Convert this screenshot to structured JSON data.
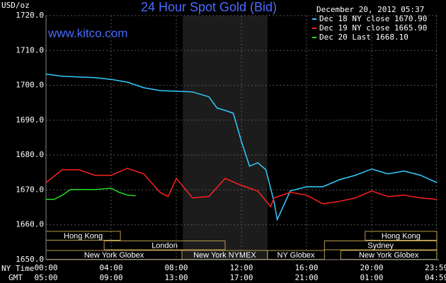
{
  "chart_data": {
    "type": "line",
    "title": "24 Hour Spot Gold (Bid)",
    "subtitle": "December 20, 2012 05:37",
    "site": "www.kitco.com",
    "y_label": "USD/oz",
    "x_row_labels": [
      "NY Time",
      "GMT"
    ],
    "xlim": [
      0,
      24
    ],
    "xticks": [
      {
        "value": 0,
        "label": "00:00"
      },
      {
        "value": 4,
        "label": "04:00"
      },
      {
        "value": 8,
        "label": "08:00"
      },
      {
        "value": 12,
        "label": "12:00"
      },
      {
        "value": 16,
        "label": "16:00"
      },
      {
        "value": 20,
        "label": "20:00"
      },
      {
        "value": 23.983,
        "label": "23:59"
      }
    ],
    "x2_labels": [
      "05:00",
      "09:00",
      "13:00",
      "17:00",
      "21:00",
      "01:00",
      "04:59"
    ],
    "ylim": [
      1650,
      1720
    ],
    "yticks": [
      {
        "value": 1650,
        "label": "1650.0"
      },
      {
        "value": 1660,
        "label": "1660.0"
      },
      {
        "value": 1670,
        "label": "1670.0"
      },
      {
        "value": 1680,
        "label": "1680.0"
      },
      {
        "value": 1690,
        "label": "1690.0"
      },
      {
        "value": 1700,
        "label": "1700.0"
      },
      {
        "value": 1710,
        "label": "1710.0"
      },
      {
        "value": 1720,
        "label": "1720.0"
      }
    ],
    "grid": true,
    "shade": [
      8.4,
      13.6
    ],
    "sessions": [
      [
        {
          "label": "Hong Kong",
          "start": 0,
          "end": 4.57
        },
        {
          "label": "Hong Kong",
          "start": 19.6,
          "end": 24
        }
      ],
      [
        {
          "label": "London",
          "start": 3.57,
          "end": 11
        },
        {
          "label": "Sydney",
          "start": 17.1,
          "end": 24
        }
      ],
      [
        {
          "label": "New York Globex",
          "start": 0,
          "end": 8.35
        },
        {
          "label": "New York NYMEX",
          "start": 8.35,
          "end": 13.6
        },
        {
          "label": "NY Globex",
          "start": 13.6,
          "end": 17.1
        },
        {
          "label": "New York Globex",
          "start": 18.1,
          "end": 24
        }
      ]
    ],
    "series": [
      {
        "name": "Dec 18 NY close 1670.90",
        "color": "#33ccff",
        "x": [
          0,
          1,
          2,
          3,
          4,
          5,
          6,
          7,
          8,
          9,
          10,
          10.5,
          11,
          11.5,
          12,
          12.5,
          13,
          13.5,
          14,
          14.2,
          15,
          16,
          17,
          18,
          19,
          20,
          21,
          22,
          23,
          24
        ],
        "values": [
          1703.2,
          1702.6,
          1702.4,
          1702.2,
          1701.7,
          1700.9,
          1699.3,
          1698.5,
          1698.3,
          1698.1,
          1696.7,
          1693.5,
          1692.8,
          1692.0,
          1683.9,
          1676.8,
          1677.8,
          1675.8,
          1666.7,
          1661.5,
          1669.7,
          1670.9,
          1670.9,
          1672.9,
          1674.2,
          1676.0,
          1674.6,
          1675.4,
          1674.2,
          1672.1
        ]
      },
      {
        "name": "Dec 19 NY close 1665.90",
        "color": "#ff2020",
        "x": [
          0,
          1,
          2,
          3,
          4,
          5,
          6,
          7,
          7.5,
          8,
          9,
          10,
          11,
          12,
          13,
          13.8,
          14,
          15,
          16,
          17,
          18,
          19,
          20,
          21,
          22,
          23,
          24
        ],
        "values": [
          1672.1,
          1675.8,
          1675.8,
          1674.2,
          1674.2,
          1676.2,
          1674.6,
          1669.3,
          1668.1,
          1673.3,
          1667.7,
          1668.1,
          1673.3,
          1671.3,
          1669.7,
          1665.2,
          1667.7,
          1669.3,
          1668.5,
          1666.0,
          1666.7,
          1667.7,
          1669.7,
          1668.1,
          1668.5,
          1667.7,
          1667.3
        ]
      },
      {
        "name": "Dec 20 Last 1668.10",
        "color": "#22dd22",
        "x": [
          0,
          0.5,
          1,
          1.5,
          2,
          3,
          4,
          4.5,
          5,
          5.5
        ],
        "values": [
          1667.3,
          1667.3,
          1668.5,
          1670.1,
          1670.1,
          1670.1,
          1670.5,
          1669.3,
          1668.5,
          1668.3
        ]
      }
    ]
  }
}
